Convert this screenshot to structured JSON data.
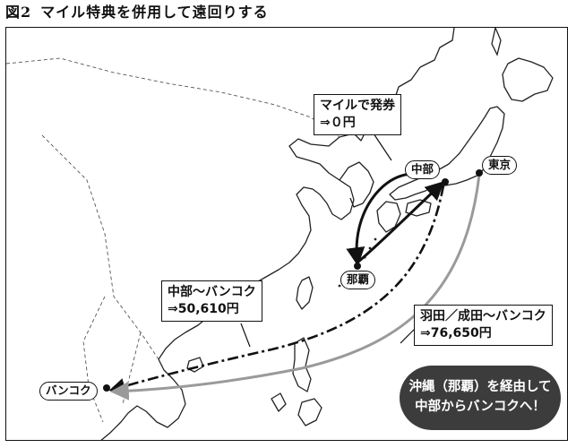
{
  "title": {
    "figure": "図2",
    "text": "マイル特典を併用して遠回りする"
  },
  "cities": {
    "tokyo": "東京",
    "chubu": "中部",
    "naha": "那覇",
    "bangkok": "バンコク"
  },
  "callouts": {
    "mile": {
      "line1": "マイルで発券",
      "line2": "⇒０円"
    },
    "chubu_bangkok": {
      "line1": "中部～バンコク",
      "line2": "⇒50,610円"
    },
    "haneda_bangkok": {
      "line1": "羽田／成田～バンコク",
      "line2": "⇒76,650円"
    }
  },
  "badge": {
    "line1": "沖縄（那覇）を経由して",
    "line2": "中部からバンコクへ！"
  },
  "colors": {
    "route_black": "#111111",
    "route_gray": "#9a9a9a",
    "badge_bg": "#3c3c3c",
    "coast": "#222222"
  }
}
